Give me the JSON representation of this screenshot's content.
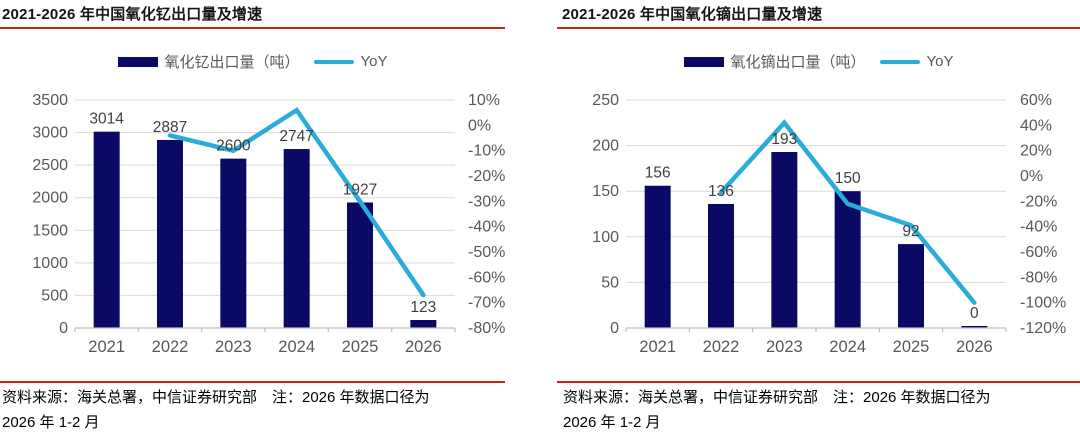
{
  "colors": {
    "bar": "#0A0A66",
    "line": "#2AACD9",
    "rule_red": "#C9251D",
    "grid": "#D9D9D9",
    "axis_line": "#BFBFBF",
    "axis_text": "#595959",
    "data_label_text": "#404040",
    "title_text": "#151515"
  },
  "chart_data": [
    {
      "type": "bar+line",
      "title": "2021-2026 年中国氧化钇出口量及增速",
      "categories": [
        "2021",
        "2022",
        "2023",
        "2024",
        "2025",
        "2026"
      ],
      "series": [
        {
          "name": "氧化钇出口量（吨）",
          "type": "bar",
          "axis": "left",
          "values": [
            3014,
            2887,
            2600,
            2747,
            1927,
            123
          ]
        },
        {
          "name": "YoY",
          "type": "line",
          "axis": "right",
          "unit": "%",
          "values": [
            null,
            -4,
            -10,
            6,
            -30,
            -67
          ]
        }
      ],
      "legend": {
        "bar_label": "氧化钇出口量（吨）",
        "line_label": "YoY"
      },
      "legend_position": "top",
      "grid": true,
      "left_axis": {
        "min": 0,
        "max": 3500,
        "ticks": [
          3500,
          3000,
          2500,
          2000,
          1500,
          1000,
          500,
          0
        ]
      },
      "right_axis": {
        "min": -80,
        "max": 10,
        "ticks": [
          "10%",
          "0%",
          "-10%",
          "-20%",
          "-30%",
          "-40%",
          "-50%",
          "-60%",
          "-70%",
          "-80%"
        ]
      }
    },
    {
      "type": "bar+line",
      "title": "2021-2026 年中国氧化镝出口量及增速",
      "categories": [
        "2021",
        "2022",
        "2023",
        "2024",
        "2025",
        "2026"
      ],
      "series": [
        {
          "name": "氧化镝出口量（吨）",
          "type": "bar",
          "axis": "left",
          "values": [
            156,
            136,
            193,
            150,
            92,
            0
          ]
        },
        {
          "name": "YoY",
          "type": "line",
          "axis": "right",
          "unit": "%",
          "values": [
            null,
            -13,
            42,
            -22,
            -39,
            -100
          ]
        }
      ],
      "legend": {
        "bar_label": "氧化镝出口量（吨）",
        "line_label": "YoY"
      },
      "legend_position": "top",
      "grid": true,
      "left_axis": {
        "min": 0,
        "max": 250,
        "ticks": [
          250,
          200,
          150,
          100,
          50,
          0
        ]
      },
      "right_axis": {
        "min": -120,
        "max": 60,
        "ticks": [
          "60%",
          "40%",
          "20%",
          "0%",
          "-20%",
          "-40%",
          "-60%",
          "-80%",
          "-100%",
          "-120%"
        ]
      }
    }
  ],
  "footer": {
    "line1": "资料来源：海关总署，中信证券研究部　注：2026 年数据口径为",
    "line2": "2026 年 1-2 月"
  }
}
